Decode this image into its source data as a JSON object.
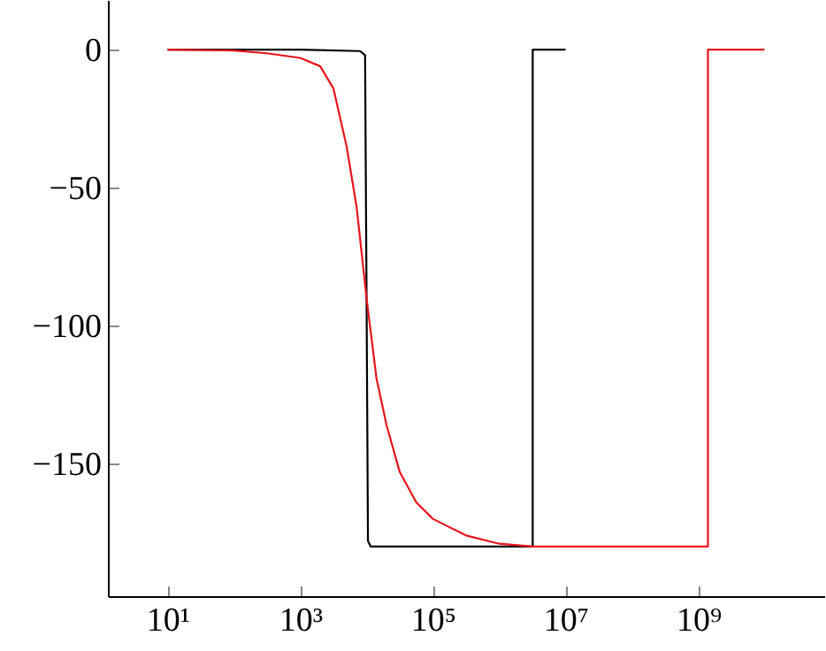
{
  "chart_data": {
    "type": "line",
    "xlim": [
      1.26,
      79400000000
    ],
    "ylim": [
      -198,
      18
    ],
    "log": "x",
    "xticks": [
      {
        "value": 10,
        "label": "10¹"
      },
      {
        "value": 1000,
        "label": "10³"
      },
      {
        "value": 100000,
        "label": "10⁵"
      },
      {
        "value": 10000000,
        "label": "10⁷"
      },
      {
        "value": 1000000000,
        "label": "10⁹"
      }
    ],
    "yticks": [
      0,
      {
        "value": -50,
        "label": "−50"
      },
      {
        "value": -100,
        "label": "−100"
      },
      {
        "value": -150,
        "label": "−150"
      }
    ],
    "grid": false,
    "marker": "none",
    "line_style": "solid",
    "series": [
      {
        "color": "#000000",
        "x": [
          10,
          1000,
          8000,
          9500,
          10000,
          10500,
          11500,
          100000,
          3200000,
          3200000,
          10000000
        ],
        "values": [
          0,
          0,
          -0.5,
          -2,
          -90,
          -178,
          -180,
          -180,
          -180,
          0,
          0
        ]
      },
      {
        "color": "#e8141c",
        "x": [
          10,
          100,
          316,
          1000,
          2000,
          3160,
          5000,
          7080,
          10000,
          14100,
          20000,
          31600,
          56200,
          100000,
          316000,
          1000000,
          3160000,
          100000000,
          1400000000,
          1400000000,
          10000000000
        ],
        "values": [
          0,
          -0.3,
          -1.3,
          -3,
          -6,
          -14,
          -35,
          -57,
          -90,
          -119,
          -136,
          -153,
          -164,
          -170,
          -176,
          -179,
          -180,
          -180,
          -180,
          0,
          0
        ]
      }
    ]
  }
}
